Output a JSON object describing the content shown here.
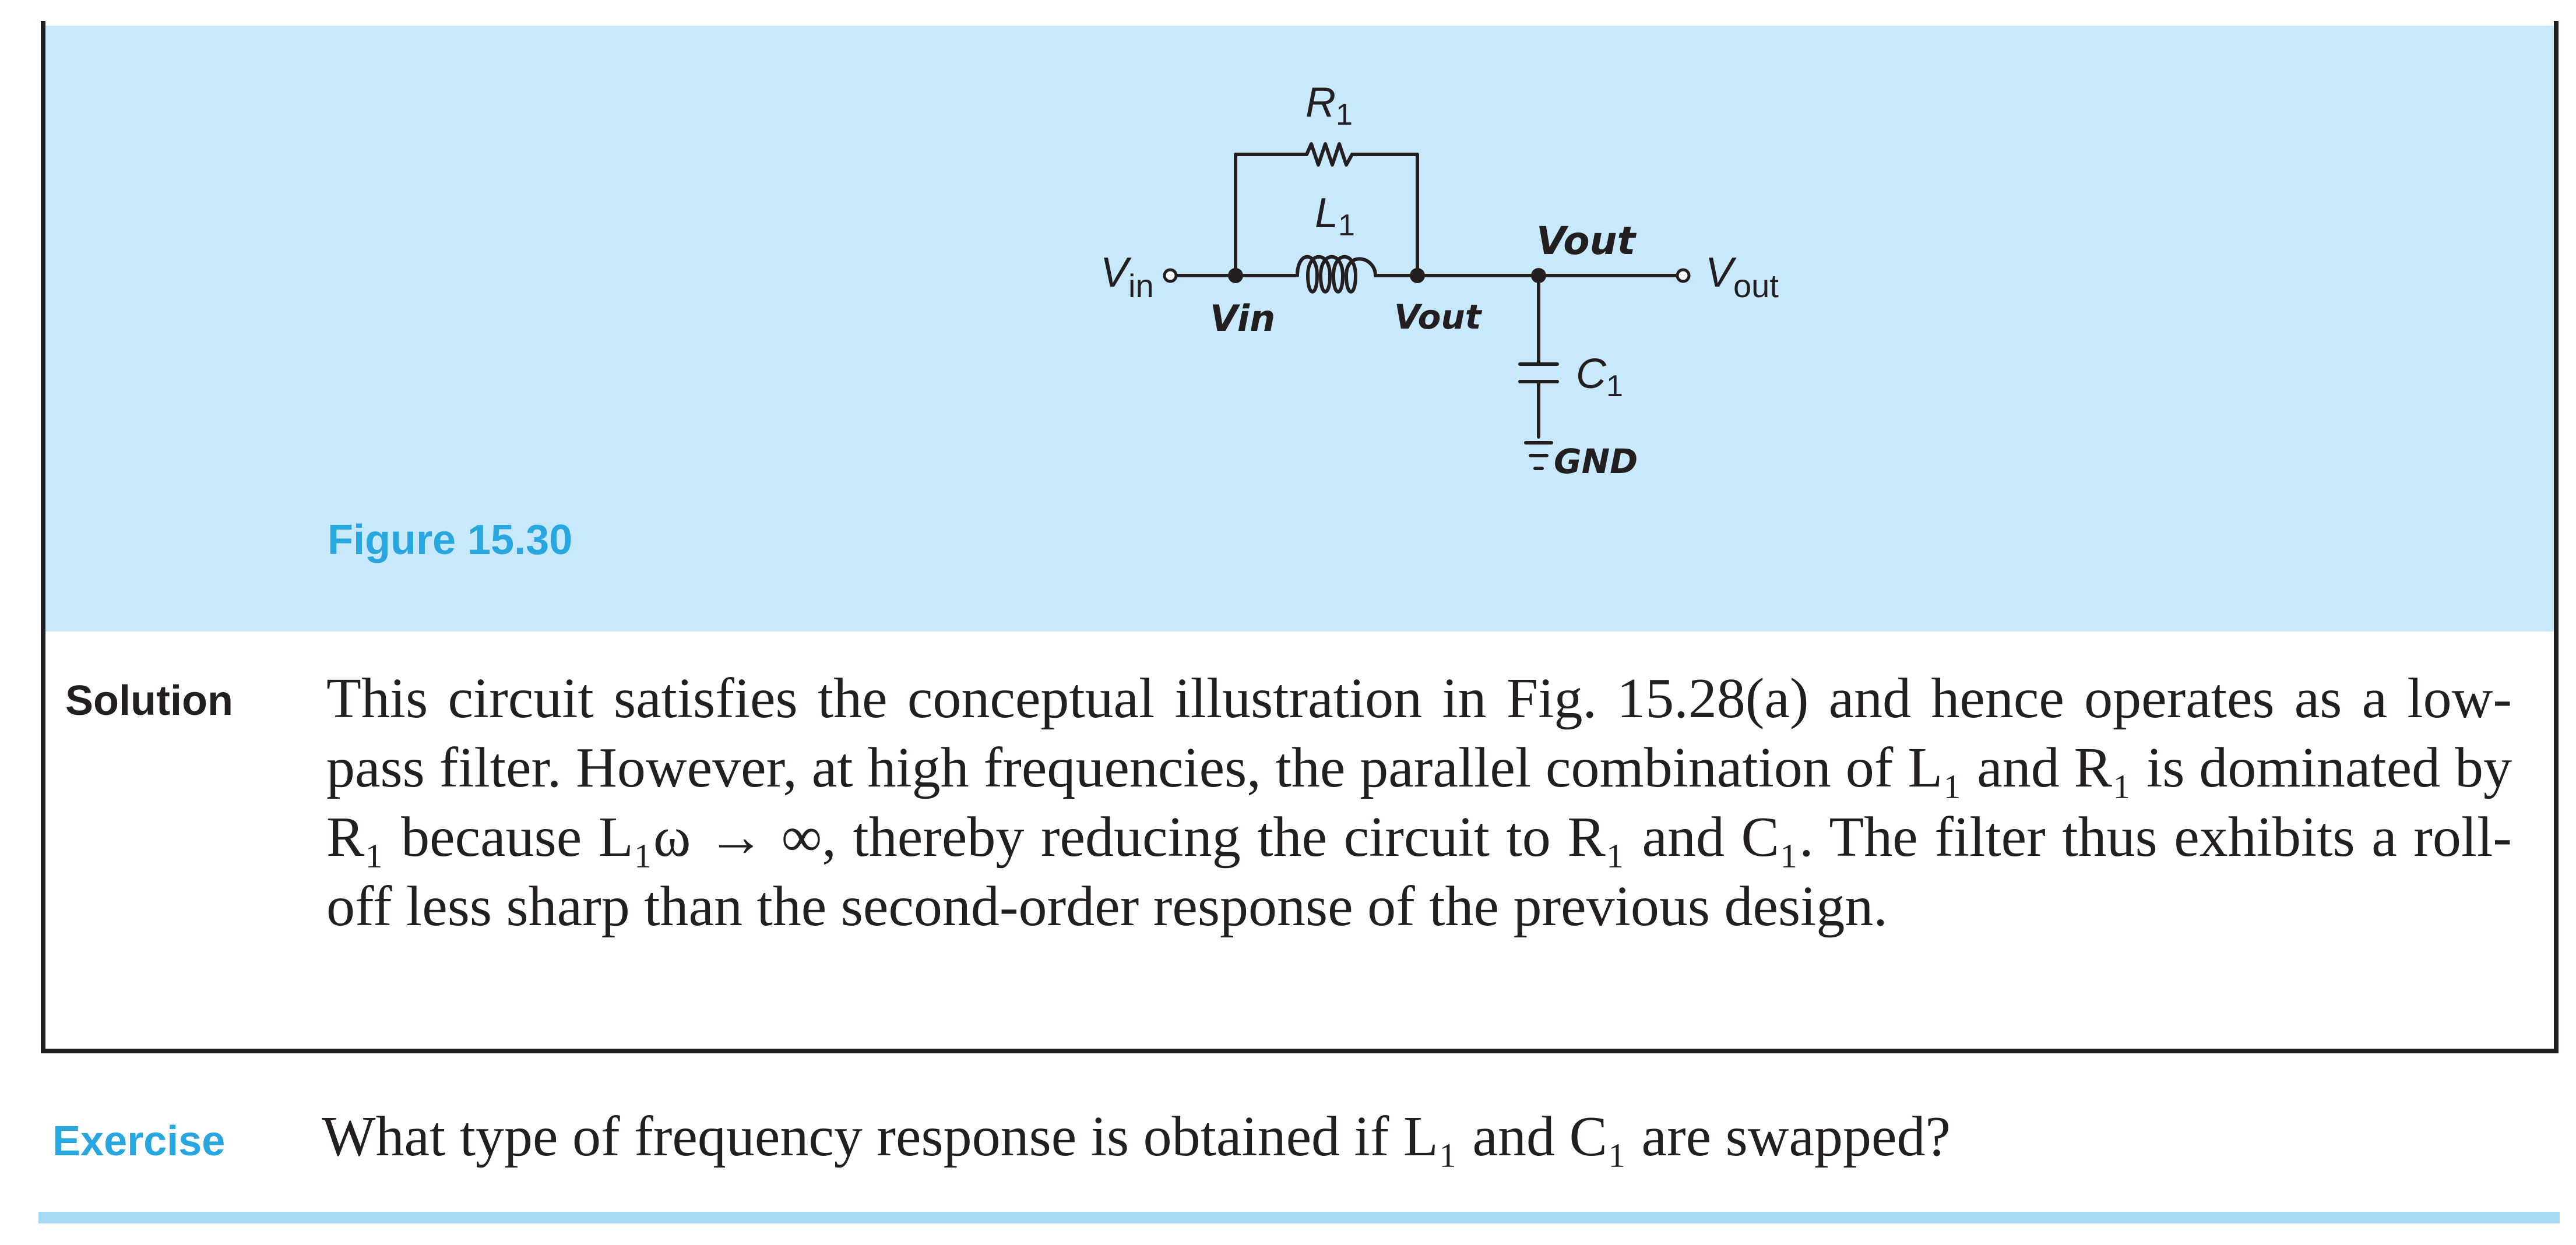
{
  "figure": {
    "caption": "Figure 15.30",
    "labels": {
      "r1_main": "R",
      "r1_sub": "1",
      "l1_main": "L",
      "l1_sub": "1",
      "c1_main": "C",
      "c1_sub": "1",
      "vin_main": "V",
      "vin_sub": "in",
      "vout_main": "V",
      "vout_sub": "out",
      "hand_vin": "Vin",
      "hand_vout_left": "Vout",
      "hand_vout_top": "Vout",
      "hand_gnd": "GND"
    }
  },
  "solution": {
    "heading": "Solution",
    "text": "This circuit satisfies the conceptual illustration in Fig. 15.28(a) and hence operates as a low-pass filter. However, at high frequencies, the parallel combination of L₁ and R₁ is dominated by R₁ because L₁ω → ∞, thereby reducing the circuit to R₁ and C₁. The filter thus exhibits a roll-off less sharp than the second-order response of the previous design."
  },
  "exercise": {
    "heading": "Exercise",
    "text": "What type of frequency response is obtained if L₁ and C₁ are swapped?"
  },
  "colors": {
    "figure_background": "#c8e8fb",
    "accent_blue": "#27a6df",
    "rule_blue": "#a8daf5",
    "ink": "#231f20"
  }
}
